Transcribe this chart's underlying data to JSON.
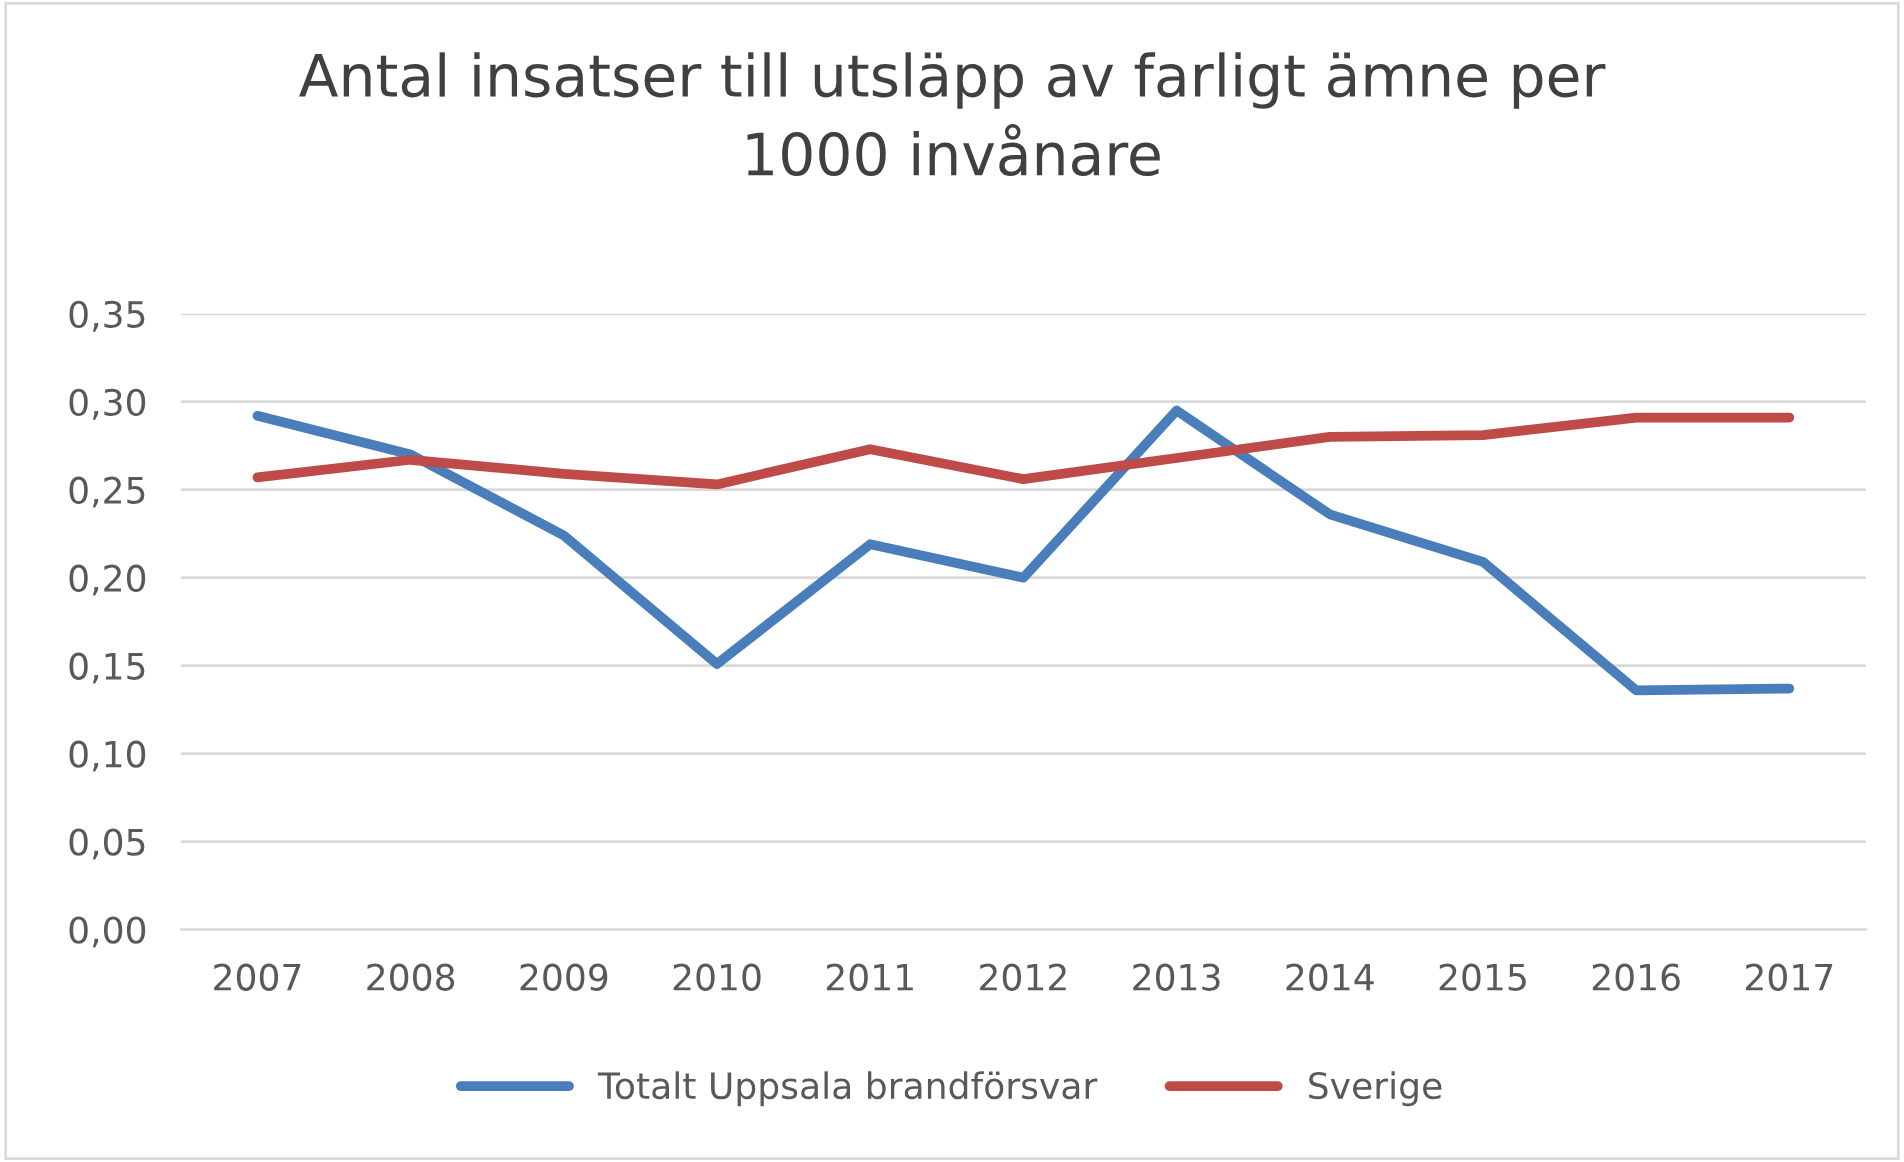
{
  "chart_data": {
    "type": "line",
    "title": "Antal insatser till utsläpp av farligt ämne per\n1000 invånare",
    "categories": [
      "2007",
      "2008",
      "2009",
      "2010",
      "2011",
      "2012",
      "2013",
      "2014",
      "2015",
      "2016",
      "2017"
    ],
    "series": [
      {
        "name": "Totalt Uppsala brandförsvar",
        "color": "#4a7ebb",
        "values": [
          0.292,
          0.27,
          0.224,
          0.151,
          0.219,
          0.2,
          0.295,
          0.236,
          0.209,
          0.136,
          0.137
        ]
      },
      {
        "name": "Sverige",
        "color": "#be4b48",
        "values": [
          0.257,
          0.267,
          0.259,
          0.253,
          0.273,
          0.256,
          0.268,
          0.28,
          0.281,
          0.291,
          0.291
        ]
      }
    ],
    "ylim": [
      0,
      0.35
    ],
    "yticks": [
      {
        "value": 0,
        "label": "0,00"
      },
      {
        "value": 0.05,
        "label": "0,05"
      },
      {
        "value": 0.1,
        "label": "0,10"
      },
      {
        "value": 0.15,
        "label": "0,15"
      },
      {
        "value": 0.2,
        "label": "0,20"
      },
      {
        "value": 0.25,
        "label": "0,25"
      },
      {
        "value": 0.3,
        "label": "0,30"
      },
      {
        "value": 0.35,
        "label": "0,35"
      }
    ],
    "grid": "y",
    "legend": "bottom",
    "marker": "none",
    "line_style": "solid"
  }
}
